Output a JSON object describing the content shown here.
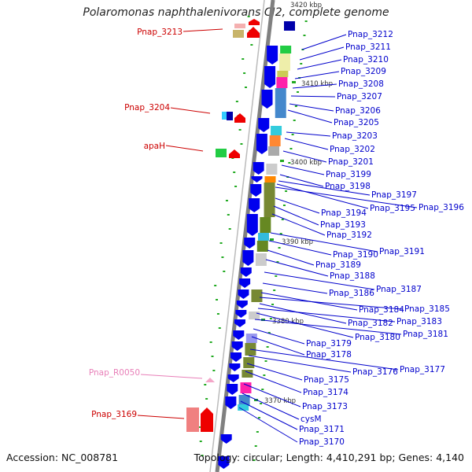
{
  "title": "Polaromonas naphthalenivorans CJ2, complete genome",
  "accession": "Accession: NC_008781",
  "topology": "Topology: circular; Length: 4,410,291 bp; Genes: 4,140",
  "kbp_marks": [
    "3420 kbp",
    "3410 kbp",
    "3400 kbp",
    "3390 kbp",
    "3380 kbp",
    "3370 kbp"
  ],
  "left_labels": [
    {
      "text": "Pnap_3213",
      "color": "#cc0000"
    },
    {
      "text": "Pnap_3204",
      "color": "#cc0000"
    },
    {
      "text": "apaH",
      "color": "#cc0000"
    },
    {
      "text": "Pnap_R0050",
      "color": "#e87fb8"
    },
    {
      "text": "Pnap_3169",
      "color": "#cc0000"
    }
  ],
  "right_labels": [
    "Pnap_3212",
    "Pnap_3211",
    "Pnap_3210",
    "Pnap_3209",
    "Pnap_3208",
    "Pnap_3207",
    "Pnap_3206",
    "Pnap_3205",
    "Pnap_3203",
    "Pnap_3202",
    "Pnap_3201",
    "Pnap_3199",
    "Pnap_3198",
    "Pnap_3197",
    "Pnap_3195",
    "Pnap_3196",
    "Pnap_3194",
    "Pnap_3193",
    "Pnap_3192",
    "Pnap_3191",
    "Pnap_3190",
    "Pnap_3189",
    "Pnap_3188",
    "Pnap_3187",
    "Pnap_3186",
    "Pnap_3184",
    "Pnap_3185",
    "Pnap_3182",
    "Pnap_3183",
    "Pnap_3180",
    "Pnap_3181",
    "Pnap_3179",
    "Pnap_3178",
    "Pnap_3177",
    "Pnap_3176",
    "Pnap_3175",
    "Pnap_3174",
    "Pnap_3173",
    "cysM",
    "Pnap_3171",
    "Pnap_3170"
  ],
  "colors": {
    "forward_gene": "#ff0000",
    "reverse_gene": "#0000ee",
    "rna": "#f4a6c8",
    "label_blue": "#0000cc",
    "label_red": "#cc0000",
    "backbone": "#808080",
    "gc_dots": "#22aa22"
  }
}
